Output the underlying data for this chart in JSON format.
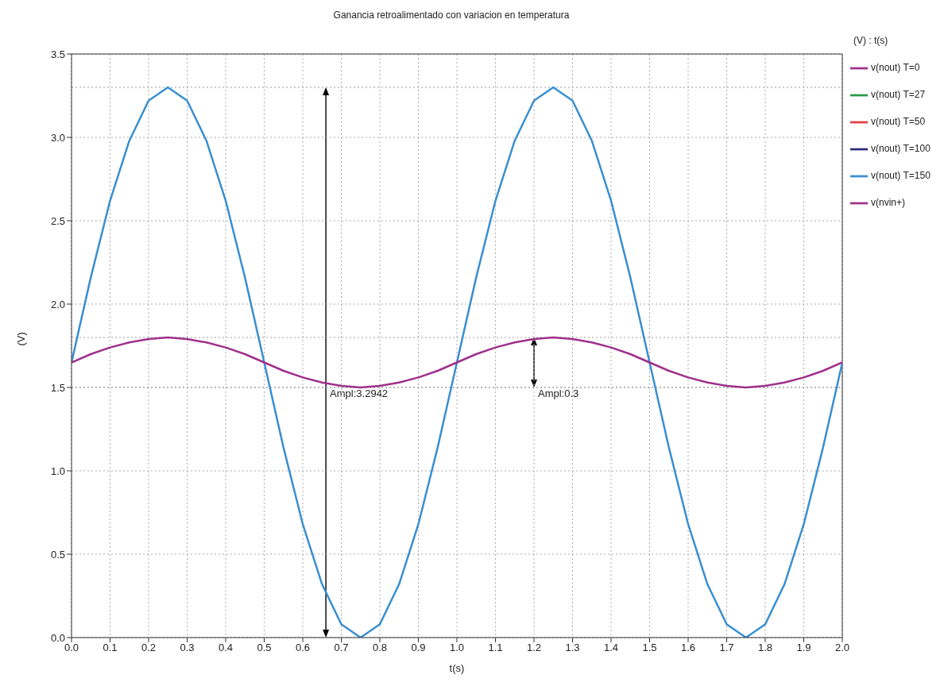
{
  "chart_data": {
    "type": "line",
    "title": "Ganancia retroalimentado con variacion en temperatura",
    "xlabel": "t(s)",
    "ylabel": "(V)",
    "legend_title": "(V) : t(s)",
    "x": [
      0,
      0.05,
      0.1,
      0.15,
      0.2,
      0.25,
      0.3,
      0.35,
      0.4,
      0.45,
      0.5,
      0.55,
      0.6,
      0.65,
      0.7,
      0.75,
      0.8,
      0.85,
      0.9,
      0.95,
      1,
      1.05,
      1.1,
      1.15,
      1.2,
      1.25,
      1.3,
      1.35,
      1.4,
      1.45,
      1.5,
      1.55,
      1.6,
      1.65,
      1.7,
      1.75,
      1.8,
      1.85,
      1.9,
      1.95,
      2
    ],
    "series": [
      {
        "name": "v(nout) T=0",
        "color": "#a0308c",
        "values": [
          null,
          null,
          null,
          null,
          null,
          null,
          null,
          null,
          null,
          null,
          null,
          null,
          null,
          null,
          null,
          null,
          null,
          null,
          null,
          null,
          null,
          null,
          null,
          null,
          null,
          null,
          null,
          null,
          null,
          null,
          null,
          null,
          null,
          null,
          null,
          null,
          null,
          null,
          null,
          null,
          null
        ]
      },
      {
        "name": "v(nout) T=27",
        "color": "#2e9a48",
        "values": [
          null,
          null,
          null,
          null,
          null,
          null,
          null,
          null,
          null,
          null,
          null,
          null,
          null,
          null,
          null,
          null,
          null,
          null,
          null,
          null,
          null,
          null,
          null,
          null,
          null,
          null,
          null,
          null,
          null,
          null,
          null,
          null,
          null,
          null,
          null,
          null,
          null,
          null,
          null,
          null,
          null
        ]
      },
      {
        "name": "v(nout) T=50",
        "color": "#e04040",
        "values": [
          null,
          null,
          null,
          null,
          null,
          null,
          null,
          null,
          null,
          null,
          null,
          null,
          null,
          null,
          null,
          null,
          null,
          null,
          null,
          null,
          null,
          null,
          null,
          null,
          null,
          null,
          null,
          null,
          null,
          null,
          null,
          null,
          null,
          null,
          null,
          null,
          null,
          null,
          null,
          null,
          null
        ]
      },
      {
        "name": "v(nout) T=100",
        "color": "#2c2c80",
        "values": [
          null,
          null,
          null,
          null,
          null,
          null,
          null,
          null,
          null,
          null,
          null,
          null,
          null,
          null,
          null,
          null,
          null,
          null,
          null,
          null,
          null,
          null,
          null,
          null,
          null,
          null,
          null,
          null,
          null,
          null,
          null,
          null,
          null,
          null,
          null,
          null,
          null,
          null,
          null,
          null,
          null
        ]
      },
      {
        "name": "v(nout) T=150",
        "color": "#3a8fd0",
        "values": [
          1.65,
          2.16,
          2.62,
          2.98,
          3.22,
          3.3,
          3.22,
          2.98,
          2.62,
          2.16,
          1.65,
          1.14,
          0.68,
          0.32,
          0.08,
          0,
          0.08,
          0.32,
          0.68,
          1.14,
          1.65,
          2.16,
          2.62,
          2.98,
          3.22,
          3.3,
          3.22,
          2.98,
          2.62,
          2.16,
          1.65,
          1.14,
          0.68,
          0.32,
          0.08,
          0,
          0.08,
          0.32,
          0.68,
          1.14,
          1.65
        ]
      },
      {
        "name": "v(nvin+)",
        "color": "#a0308c",
        "values": [
          1.65,
          1.7,
          1.74,
          1.77,
          1.79,
          1.8,
          1.79,
          1.77,
          1.74,
          1.7,
          1.65,
          1.6,
          1.56,
          1.53,
          1.51,
          1.5,
          1.51,
          1.53,
          1.56,
          1.6,
          1.65,
          1.7,
          1.74,
          1.77,
          1.79,
          1.8,
          1.79,
          1.77,
          1.74,
          1.7,
          1.65,
          1.6,
          1.56,
          1.53,
          1.51,
          1.5,
          1.51,
          1.53,
          1.56,
          1.6,
          1.65
        ]
      }
    ],
    "xlim": [
      0,
      2
    ],
    "xticks": [
      {
        "value": 0,
        "label": "0.0"
      },
      0.1,
      0.2,
      0.3,
      0.4,
      0.5,
      0.6,
      0.7,
      0.8,
      0.9,
      {
        "value": 1,
        "label": "1.0"
      },
      1.1,
      1.2,
      1.3,
      1.4,
      1.5,
      1.6,
      1.7,
      1.8,
      1.9,
      {
        "value": 2,
        "label": "2.0"
      }
    ],
    "ylim": [
      0,
      3.5
    ],
    "yticks": [
      {
        "value": 0,
        "label": "0.0"
      },
      0.5,
      {
        "value": 1,
        "label": "1.0"
      },
      1.5,
      {
        "value": 2,
        "label": "2.0"
      },
      2.5,
      {
        "value": 3,
        "label": "3.0"
      },
      3.5
    ],
    "ref_lines": [
      {
        "axis": "y",
        "value": 3.3,
        "color": "#999999",
        "line_style": "dotted"
      },
      {
        "axis": "y",
        "value": 1.8,
        "color": "#999999",
        "line_style": "dotted"
      },
      {
        "axis": "y",
        "value": 1.5,
        "color": "#999999",
        "line_style": "dotted"
      }
    ],
    "annotations": [
      {
        "text": "Ampl:3.2942",
        "x": 0.66,
        "y": 1.5
      },
      {
        "text": "Ampl:0.3",
        "x": 1.2,
        "y": 1.5
      }
    ],
    "grid": true,
    "legend": "right",
    "marker": "none",
    "line_style": "solid"
  }
}
